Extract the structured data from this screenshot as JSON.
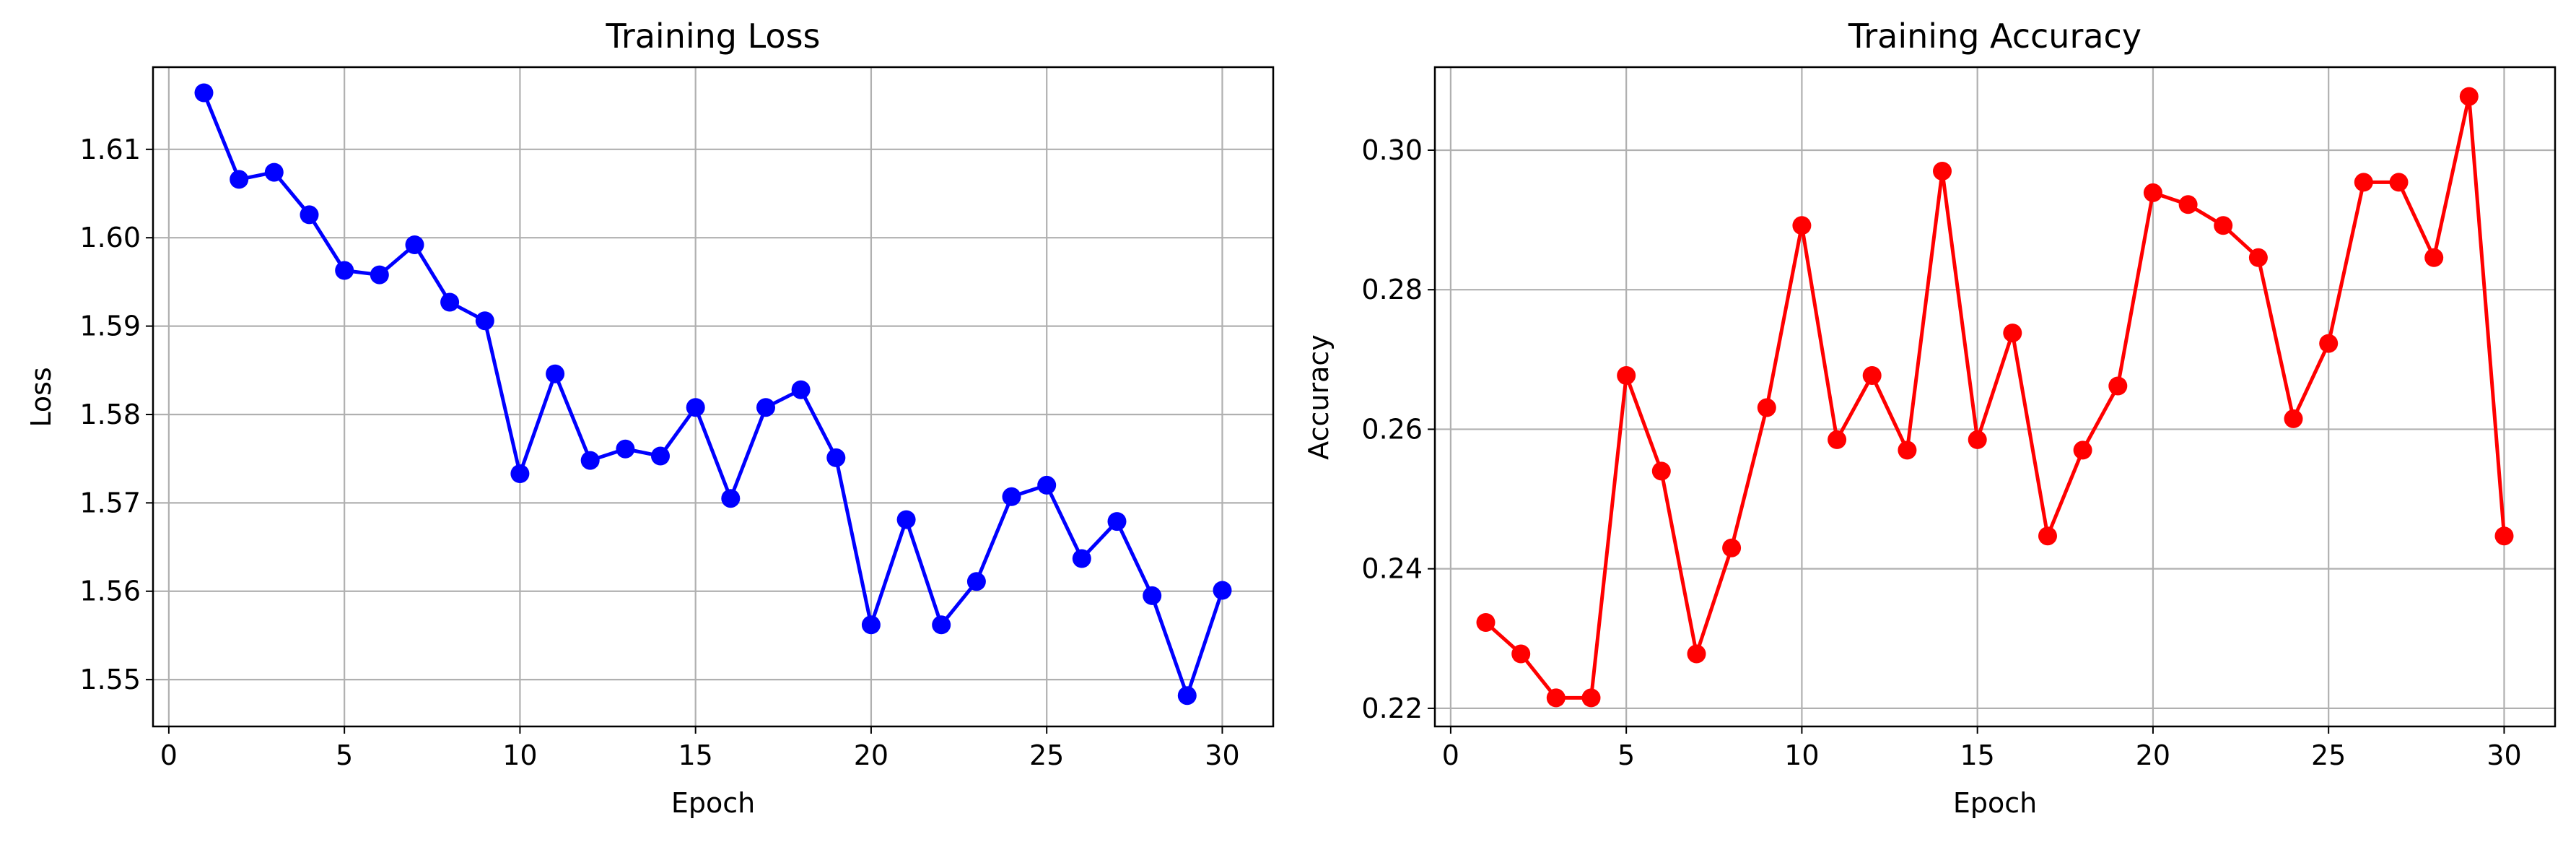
{
  "chart_data": [
    {
      "type": "line",
      "title": "Training Loss",
      "xlabel": "Epoch",
      "ylabel": "Loss",
      "xlim": [
        -0.45,
        31.45
      ],
      "ylim": [
        1.5447,
        1.6193
      ],
      "xticks": [
        0,
        5,
        10,
        15,
        20,
        25,
        30
      ],
      "xtick_labels": [
        "0",
        "5",
        "10",
        "15",
        "20",
        "25",
        "30"
      ],
      "yticks": [
        1.55,
        1.56,
        1.57,
        1.58,
        1.59,
        1.6,
        1.61
      ],
      "ytick_labels": [
        "1.55",
        "1.56",
        "1.57",
        "1.58",
        "1.59",
        "1.60",
        "1.61"
      ],
      "grid": true,
      "color": "#0000ff",
      "marker": "circle",
      "x": [
        1,
        2,
        3,
        4,
        5,
        6,
        7,
        8,
        9,
        10,
        11,
        12,
        13,
        14,
        15,
        16,
        17,
        18,
        19,
        20,
        21,
        22,
        23,
        24,
        25,
        26,
        27,
        28,
        29,
        30
      ],
      "y": [
        1.6164,
        1.6066,
        1.6074,
        1.6026,
        1.5963,
        1.5958,
        1.5992,
        1.5927,
        1.5906,
        1.5733,
        1.5846,
        1.5748,
        1.5761,
        1.5753,
        1.5808,
        1.5705,
        1.5808,
        1.5828,
        1.5751,
        1.5562,
        1.5681,
        1.5562,
        1.5611,
        1.5707,
        1.572,
        1.5637,
        1.5679,
        1.5595,
        1.5482,
        1.5601
      ]
    },
    {
      "type": "line",
      "title": "Training Accuracy",
      "xlabel": "Epoch",
      "ylabel": "Accuracy",
      "xlim": [
        -0.45,
        31.45
      ],
      "ylim": [
        0.2174,
        0.3119
      ],
      "xticks": [
        0,
        5,
        10,
        15,
        20,
        25,
        30
      ],
      "xtick_labels": [
        "0",
        "5",
        "10",
        "15",
        "20",
        "25",
        "30"
      ],
      "yticks": [
        0.22,
        0.24,
        0.26,
        0.28,
        0.3
      ],
      "ytick_labels": [
        "0.22",
        "0.24",
        "0.26",
        "0.28",
        "0.30"
      ],
      "grid": true,
      "color": "#ff0000",
      "marker": "circle",
      "x": [
        1,
        2,
        3,
        4,
        5,
        6,
        7,
        8,
        9,
        10,
        11,
        12,
        13,
        14,
        15,
        16,
        17,
        18,
        19,
        20,
        21,
        22,
        23,
        24,
        25,
        26,
        27,
        28,
        29,
        30
      ],
      "y": [
        0.2323,
        0.2278,
        0.2215,
        0.2215,
        0.2677,
        0.254,
        0.2278,
        0.243,
        0.2631,
        0.2892,
        0.2585,
        0.2677,
        0.257,
        0.297,
        0.2585,
        0.2738,
        0.2447,
        0.257,
        0.2662,
        0.2939,
        0.2922,
        0.2892,
        0.2846,
        0.2615,
        0.2723,
        0.2954,
        0.2954,
        0.2846,
        0.3077,
        0.2447
      ]
    }
  ]
}
